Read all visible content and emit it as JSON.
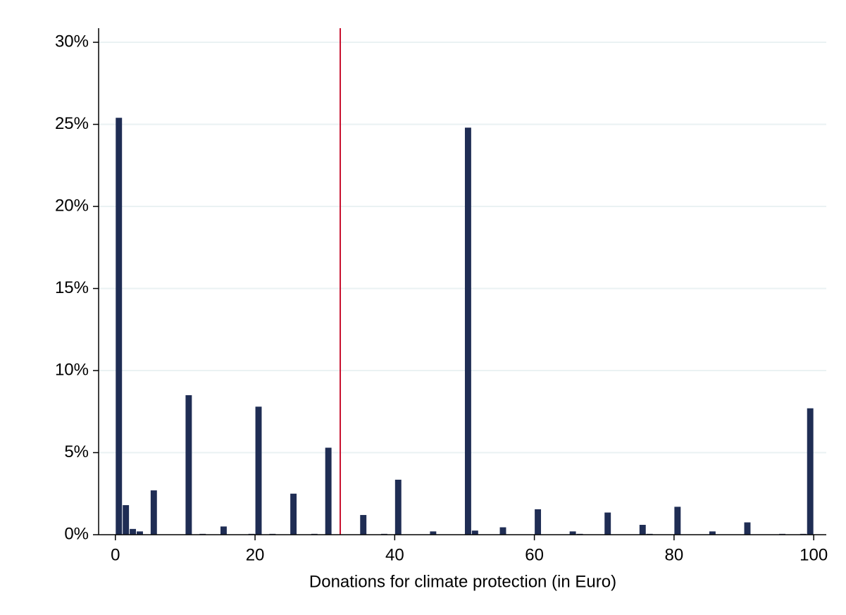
{
  "chart_data": {
    "type": "histogram",
    "x_label": "Donations for climate protection (in Euro)",
    "bins": [
      0,
      1,
      2,
      3,
      4,
      5,
      6,
      7,
      8,
      9,
      10,
      11,
      12,
      13,
      14,
      15,
      16,
      17,
      18,
      19,
      20,
      21,
      22,
      23,
      24,
      25,
      26,
      27,
      28,
      29,
      30,
      31,
      32,
      33,
      34,
      35,
      36,
      37,
      38,
      39,
      40,
      41,
      42,
      43,
      44,
      45,
      46,
      47,
      48,
      49,
      50,
      51,
      52,
      53,
      54,
      55,
      56,
      57,
      58,
      59,
      60,
      61,
      62,
      63,
      64,
      65,
      66,
      67,
      68,
      69,
      70,
      71,
      72,
      73,
      74,
      75,
      76,
      77,
      78,
      79,
      80,
      81,
      82,
      83,
      84,
      85,
      86,
      87,
      88,
      89,
      90,
      91,
      92,
      93,
      94,
      95,
      96,
      97,
      98,
      99,
      100
    ],
    "values": [
      25.4,
      1.8,
      0.35,
      0.2,
      0,
      2.7,
      0,
      0,
      0,
      0,
      8.5,
      0,
      0.05,
      0,
      0,
      0.5,
      0,
      0,
      0,
      0.05,
      7.8,
      0,
      0.05,
      0,
      0,
      2.5,
      0,
      0,
      0.05,
      0,
      5.3,
      0,
      0,
      0,
      0,
      1.2,
      0,
      0,
      0.05,
      0,
      3.35,
      0,
      0,
      0,
      0,
      0.2,
      0,
      0,
      0,
      0,
      24.8,
      0.25,
      0,
      0,
      0,
      0.45,
      0,
      0,
      0,
      0,
      1.55,
      0,
      0,
      0,
      0,
      0.2,
      0.05,
      0,
      0,
      0,
      1.35,
      0,
      0,
      0,
      0,
      0.6,
      0.05,
      0,
      0,
      0,
      1.7,
      0,
      0,
      0,
      0,
      0.2,
      0,
      0,
      0,
      0,
      0.75,
      0,
      0,
      0,
      0,
      0.05,
      0,
      0,
      0.05,
      7.7
    ],
    "color": "#1f2d54",
    "reference_line": {
      "value": 32.2,
      "color": "#c8102e"
    },
    "xlim": [
      -2.4,
      101.8
    ],
    "xticks": [
      0,
      20,
      40,
      60,
      80,
      100
    ],
    "ylim": [
      0,
      30.86
    ],
    "yticks": [
      {
        "value": 0,
        "label": "0%"
      },
      {
        "value": 5,
        "label": "5%"
      },
      {
        "value": 10,
        "label": "10%"
      },
      {
        "value": 15,
        "label": "15%"
      },
      {
        "value": 20,
        "label": "20%"
      },
      {
        "value": 25,
        "label": "25%"
      },
      {
        "value": 30,
        "label": "30%"
      }
    ],
    "grid": true,
    "grid_color": "#eaf2f3"
  }
}
